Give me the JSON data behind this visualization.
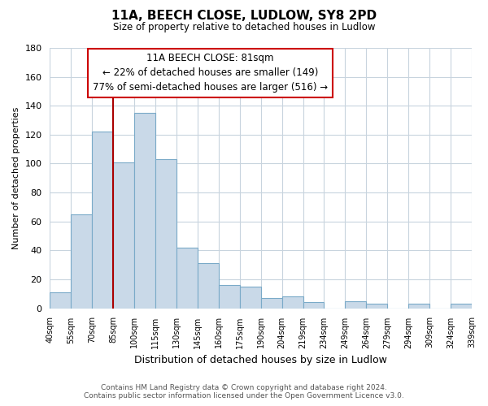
{
  "title": "11A, BEECH CLOSE, LUDLOW, SY8 2PD",
  "subtitle": "Size of property relative to detached houses in Ludlow",
  "xlabel": "Distribution of detached houses by size in Ludlow",
  "ylabel": "Number of detached properties",
  "categories": [
    "40sqm",
    "55sqm",
    "70sqm",
    "85sqm",
    "100sqm",
    "115sqm",
    "130sqm",
    "145sqm",
    "160sqm",
    "175sqm",
    "190sqm",
    "204sqm",
    "219sqm",
    "234sqm",
    "249sqm",
    "264sqm",
    "279sqm",
    "294sqm",
    "309sqm",
    "324sqm",
    "339sqm"
  ],
  "values": [
    11,
    65,
    122,
    101,
    135,
    103,
    42,
    31,
    16,
    15,
    7,
    8,
    4,
    0,
    5,
    3,
    0,
    3,
    0,
    3
  ],
  "bar_color": "#c9d9e8",
  "bar_edge_color": "#7aaac8",
  "ylim": [
    0,
    180
  ],
  "yticks": [
    0,
    20,
    40,
    60,
    80,
    100,
    120,
    140,
    160,
    180
  ],
  "property_line_color": "#aa0000",
  "annotation_title": "11A BEECH CLOSE: 81sqm",
  "annotation_line1": "← 22% of detached houses are smaller (149)",
  "annotation_line2": "77% of semi-detached houses are larger (516) →",
  "annotation_box_color": "#ffffff",
  "annotation_box_edge": "#cc0000",
  "footer_line1": "Contains HM Land Registry data © Crown copyright and database right 2024.",
  "footer_line2": "Contains public sector information licensed under the Open Government Licence v3.0.",
  "background_color": "#ffffff",
  "grid_color": "#c8d4de"
}
